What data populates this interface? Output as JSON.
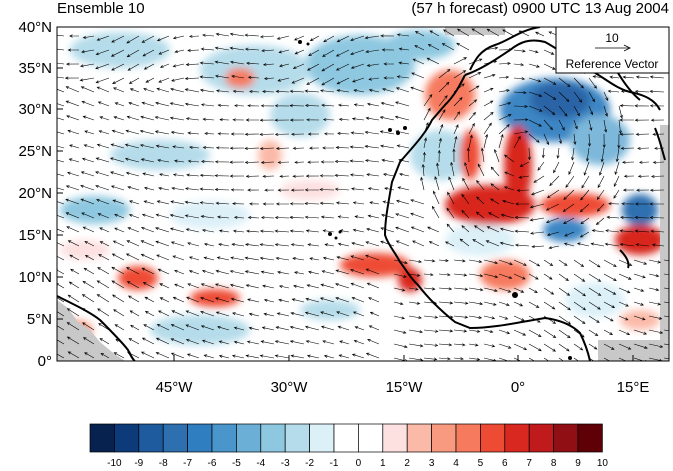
{
  "header": {
    "left_title": "Ensemble 10",
    "right_title": "(57 h forecast) 0900 UTC 13 Aug 2004"
  },
  "map": {
    "lat_labels": [
      "40°N",
      "35°N",
      "30°N",
      "25°N",
      "20°N",
      "15°N",
      "10°N",
      "5°N",
      "0°"
    ],
    "lon_labels": [
      "45°W",
      "30°W",
      "15°W",
      "0°",
      "15°E"
    ],
    "reference_vector": {
      "value": "10",
      "label": "Reference Vector"
    },
    "colors": {
      "land_mask": "#c8c8c8",
      "coast": "#000000",
      "arrows": "#000000"
    }
  },
  "colorbar": {
    "colors": [
      "#08224f",
      "#0d3a78",
      "#1e5b9e",
      "#2e6fb0",
      "#2f7ec0",
      "#4a96cc",
      "#6bafd6",
      "#8ec8e0",
      "#b5dcea",
      "#dcf0f8",
      "#ffffff",
      "#ffffff",
      "#fde0e0",
      "#fbbaa8",
      "#f89a80",
      "#f57a5e",
      "#ee4b35",
      "#d8281f",
      "#c01a1c",
      "#8f0f14",
      "#5f0007"
    ],
    "labels": [
      "-10",
      "-9",
      "-8",
      "-7",
      "-6",
      "-5",
      "-4",
      "-3",
      "-2",
      "-1",
      "0",
      "1",
      "2",
      "3",
      "4",
      "5",
      "6",
      "7",
      "8",
      "9",
      "10"
    ]
  }
}
